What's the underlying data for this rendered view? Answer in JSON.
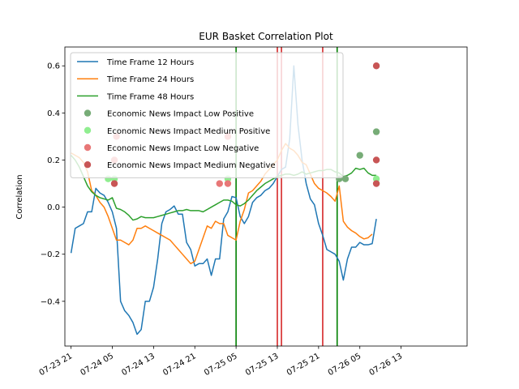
{
  "chart_data": {
    "type": "line",
    "title": "EUR Basket Correlation Plot",
    "xlabel": "",
    "ylabel": "Correlation",
    "xlim": [
      -1.5,
      96.0
    ],
    "ylim": [
      -0.59,
      0.68
    ],
    "x_ticks": [
      {
        "x": 0,
        "label": "07-23 21"
      },
      {
        "x": 10,
        "label": "07-24 05"
      },
      {
        "x": 20,
        "label": "07-24 13"
      },
      {
        "x": 30,
        "label": "07-24 21"
      },
      {
        "x": 40,
        "label": "07-25 05"
      },
      {
        "x": 50,
        "label": "07-25 13"
      },
      {
        "x": 60,
        "label": "07-25 21"
      },
      {
        "x": 70,
        "label": "07-26 05"
      },
      {
        "x": 80,
        "label": "07-26 13"
      }
    ],
    "y_ticks": [
      -0.4,
      -0.2,
      0.0,
      0.2,
      0.4,
      0.6
    ],
    "y_tick_labels": [
      "−0.4",
      "−0.2",
      "0.0",
      "0.2",
      "0.4",
      "0.6"
    ],
    "legend_position": "top-left",
    "series": [
      {
        "name": "Time Frame 12 Hours",
        "color": "#1f77b4",
        "points": [
          [
            0,
            -0.195
          ],
          [
            1,
            -0.09
          ],
          [
            2,
            -0.08
          ],
          [
            3,
            -0.07
          ],
          [
            4,
            -0.02
          ],
          [
            5,
            -0.02
          ],
          [
            6,
            0.08
          ],
          [
            7,
            0.06
          ],
          [
            8,
            0.05
          ],
          [
            9,
            0.02
          ],
          [
            10,
            -0.02
          ],
          [
            11,
            -0.09
          ],
          [
            12,
            -0.4
          ],
          [
            13,
            -0.44
          ],
          [
            14,
            -0.46
          ],
          [
            15,
            -0.49
          ],
          [
            16,
            -0.54
          ],
          [
            17,
            -0.52
          ],
          [
            18,
            -0.4
          ],
          [
            19,
            -0.4
          ],
          [
            20,
            -0.34
          ],
          [
            21,
            -0.22
          ],
          [
            22,
            -0.07
          ],
          [
            23,
            -0.02
          ],
          [
            24,
            -0.01
          ],
          [
            25,
            0.005
          ],
          [
            26,
            -0.03
          ],
          [
            27,
            -0.03
          ],
          [
            28,
            -0.15
          ],
          [
            29,
            -0.18
          ],
          [
            30,
            -0.25
          ],
          [
            31,
            -0.24
          ],
          [
            32,
            -0.24
          ],
          [
            33,
            -0.22
          ],
          [
            34,
            -0.29
          ],
          [
            35,
            -0.22
          ],
          [
            36,
            -0.22
          ],
          [
            37,
            -0.05
          ],
          [
            38,
            -0.02
          ],
          [
            39,
            0.045
          ],
          [
            40,
            0.04
          ],
          [
            41,
            -0.04
          ],
          [
            42,
            -0.07
          ],
          [
            43,
            -0.04
          ],
          [
            44,
            0.02
          ],
          [
            45,
            0.04
          ],
          [
            46,
            0.05
          ],
          [
            47,
            0.07
          ],
          [
            48,
            0.08
          ],
          [
            49,
            0.1
          ],
          [
            50,
            0.13
          ],
          [
            51,
            0.16
          ],
          [
            52,
            0.17
          ],
          [
            53,
            0.29
          ],
          [
            54,
            0.6
          ],
          [
            55,
            0.35
          ],
          [
            56,
            0.2
          ],
          [
            57,
            0.1
          ],
          [
            58,
            0.035
          ],
          [
            59,
            0.01
          ],
          [
            60,
            -0.07
          ],
          [
            61,
            -0.12
          ],
          [
            62,
            -0.18
          ],
          [
            63,
            -0.19
          ],
          [
            64,
            -0.2
          ],
          [
            65,
            -0.23
          ],
          [
            66,
            -0.31
          ],
          [
            67,
            -0.22
          ],
          [
            68,
            -0.17
          ],
          [
            69,
            -0.17
          ],
          [
            70,
            -0.15
          ],
          [
            71,
            -0.16
          ],
          [
            72,
            -0.16
          ],
          [
            73,
            -0.155
          ],
          [
            74,
            -0.05
          ]
        ]
      },
      {
        "name": "Time Frame 24 Hours",
        "color": "#ff7f0e",
        "points": [
          [
            0,
            0.23
          ],
          [
            1,
            0.22
          ],
          [
            2,
            0.21
          ],
          [
            3,
            0.19
          ],
          [
            4,
            0.15
          ],
          [
            5,
            0.07
          ],
          [
            6,
            0.05
          ],
          [
            7,
            0.02
          ],
          [
            8,
            0.0
          ],
          [
            9,
            -0.04
          ],
          [
            10,
            -0.09
          ],
          [
            11,
            -0.14
          ],
          [
            12,
            -0.14
          ],
          [
            13,
            -0.15
          ],
          [
            14,
            -0.16
          ],
          [
            15,
            -0.14
          ],
          [
            16,
            -0.09
          ],
          [
            17,
            -0.09
          ],
          [
            18,
            -0.08
          ],
          [
            19,
            -0.09
          ],
          [
            20,
            -0.1
          ],
          [
            21,
            -0.11
          ],
          [
            22,
            -0.12
          ],
          [
            23,
            -0.13
          ],
          [
            24,
            -0.14
          ],
          [
            25,
            -0.16
          ],
          [
            26,
            -0.18
          ],
          [
            27,
            -0.2
          ],
          [
            28,
            -0.22
          ],
          [
            29,
            -0.24
          ],
          [
            30,
            -0.23
          ],
          [
            31,
            -0.18
          ],
          [
            32,
            -0.13
          ],
          [
            33,
            -0.08
          ],
          [
            34,
            -0.09
          ],
          [
            35,
            -0.06
          ],
          [
            36,
            -0.07
          ],
          [
            37,
            -0.07
          ],
          [
            38,
            -0.12
          ],
          [
            39,
            -0.13
          ],
          [
            40,
            -0.14
          ],
          [
            41,
            -0.06
          ],
          [
            42,
            -0.01
          ],
          [
            43,
            0.06
          ],
          [
            44,
            0.07
          ],
          [
            45,
            0.09
          ],
          [
            46,
            0.11
          ],
          [
            47,
            0.14
          ],
          [
            48,
            0.16
          ],
          [
            49,
            0.18
          ],
          [
            50,
            0.2
          ],
          [
            51,
            0.24
          ],
          [
            52,
            0.27
          ],
          [
            53,
            0.25
          ],
          [
            54,
            0.24
          ],
          [
            55,
            0.22
          ],
          [
            56,
            0.19
          ],
          [
            57,
            0.18
          ],
          [
            58,
            0.14
          ],
          [
            59,
            0.1
          ],
          [
            60,
            0.08
          ],
          [
            61,
            0.07
          ],
          [
            62,
            0.06
          ],
          [
            63,
            0.045
          ],
          [
            64,
            0.025
          ],
          [
            65,
            0.09
          ],
          [
            66,
            -0.06
          ],
          [
            67,
            -0.085
          ],
          [
            68,
            -0.1
          ],
          [
            69,
            -0.11
          ],
          [
            70,
            -0.125
          ],
          [
            71,
            -0.135
          ],
          [
            72,
            -0.13
          ],
          [
            73,
            -0.115
          ]
        ]
      },
      {
        "name": "Time Frame 48 Hours",
        "color": "#2ca02c",
        "points": [
          [
            0,
            0.22
          ],
          [
            1,
            0.2
          ],
          [
            2,
            0.17
          ],
          [
            3,
            0.13
          ],
          [
            4,
            0.09
          ],
          [
            5,
            0.065
          ],
          [
            6,
            0.05
          ],
          [
            7,
            0.04
          ],
          [
            8,
            0.035
          ],
          [
            9,
            0.03
          ],
          [
            10,
            0.04
          ],
          [
            11,
            -0.005
          ],
          [
            12,
            -0.01
          ],
          [
            13,
            -0.02
          ],
          [
            14,
            -0.035
          ],
          [
            15,
            -0.055
          ],
          [
            16,
            -0.05
          ],
          [
            17,
            -0.04
          ],
          [
            18,
            -0.045
          ],
          [
            19,
            -0.045
          ],
          [
            20,
            -0.045
          ],
          [
            21,
            -0.04
          ],
          [
            22,
            -0.035
          ],
          [
            23,
            -0.03
          ],
          [
            24,
            -0.025
          ],
          [
            25,
            -0.02
          ],
          [
            26,
            -0.015
          ],
          [
            27,
            -0.015
          ],
          [
            28,
            -0.01
          ],
          [
            29,
            -0.015
          ],
          [
            30,
            -0.015
          ],
          [
            31,
            -0.015
          ],
          [
            32,
            -0.02
          ],
          [
            33,
            -0.01
          ],
          [
            34,
            0.0
          ],
          [
            35,
            0.01
          ],
          [
            36,
            0.02
          ],
          [
            37,
            0.03
          ],
          [
            38,
            0.03
          ],
          [
            39,
            0.025
          ],
          [
            40,
            0.01
          ],
          [
            41,
            0.005
          ],
          [
            42,
            0.015
          ],
          [
            43,
            0.03
          ],
          [
            44,
            0.05
          ],
          [
            45,
            0.07
          ],
          [
            46,
            0.085
          ],
          [
            47,
            0.1
          ],
          [
            48,
            0.11
          ],
          [
            49,
            0.12
          ],
          [
            50,
            0.13
          ],
          [
            51,
            0.135
          ],
          [
            52,
            0.14
          ],
          [
            53,
            0.14
          ],
          [
            54,
            0.135
          ],
          [
            55,
            0.14
          ],
          [
            56,
            0.15
          ],
          [
            57,
            0.14
          ],
          [
            58,
            0.145
          ],
          [
            59,
            0.15
          ],
          [
            60,
            0.155
          ],
          [
            61,
            0.155
          ],
          [
            62,
            0.16
          ],
          [
            63,
            0.16
          ],
          [
            64,
            0.15
          ],
          [
            65,
            0.145
          ],
          [
            66,
            0.13
          ],
          [
            67,
            0.135
          ],
          [
            68,
            0.145
          ],
          [
            69,
            0.165
          ],
          [
            70,
            0.16
          ],
          [
            71,
            0.165
          ],
          [
            72,
            0.145
          ],
          [
            73,
            0.135
          ],
          [
            74,
            0.135
          ]
        ]
      }
    ],
    "scatter_series": [
      {
        "name": "Economic News Impact Low Positive",
        "color": "#77ac77",
        "points": [
          [
            70,
            0.22
          ],
          [
            65,
            0.12
          ],
          [
            66.5,
            0.12
          ],
          [
            74,
            0.32
          ]
        ]
      },
      {
        "name": "Economic News Impact Medium Positive",
        "color": "#90ee90",
        "points": [
          [
            9,
            0.12
          ],
          [
            10.5,
            0.12
          ],
          [
            38,
            0.12
          ],
          [
            74,
            0.12
          ]
        ]
      },
      {
        "name": "Economic News Impact Low Negative",
        "color": "#e87777",
        "points": [
          [
            10.5,
            0.2
          ],
          [
            11,
            0.3
          ],
          [
            36,
            0.1
          ],
          [
            38,
            0.1
          ],
          [
            38,
            0.3
          ]
        ]
      },
      {
        "name": "Economic News Impact Medium Negative",
        "color": "#c85555",
        "points": [
          [
            10.5,
            0.1
          ],
          [
            74,
            0.6
          ],
          [
            74,
            0.2
          ],
          [
            74,
            0.1
          ]
        ]
      }
    ],
    "vlines": [
      {
        "x": 40,
        "color": "#008000"
      },
      {
        "x": 50,
        "color": "#d62728"
      },
      {
        "x": 51,
        "color": "#d62728"
      },
      {
        "x": 61,
        "color": "#d62728"
      },
      {
        "x": 64.5,
        "color": "#008000"
      }
    ]
  }
}
